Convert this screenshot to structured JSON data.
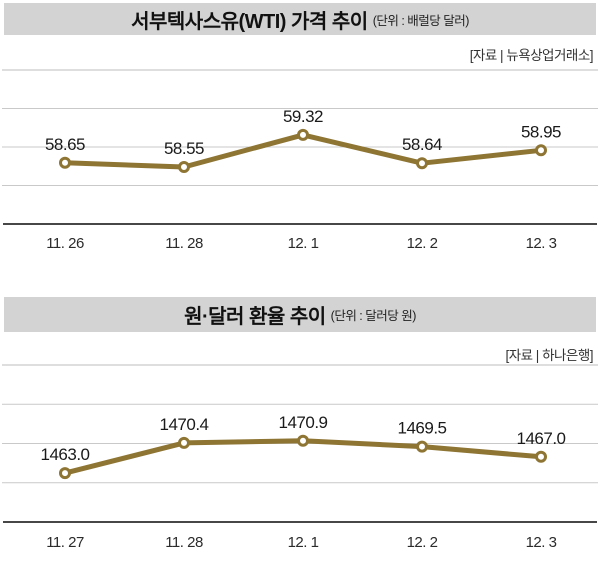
{
  "colors": {
    "title_bar_bg": "#d3d3d3",
    "line": "#8e7533",
    "marker_fill": "#ffffff",
    "gridline": "#c9c9c9",
    "divider": "#bdbdbd",
    "axis": "#474747",
    "value_text": "#1a1a1a",
    "tick_text": "#2b2b2b",
    "source_text": "#333333"
  },
  "chart_data": [
    {
      "type": "line",
      "title": "서부텍사스유(WTI) 가격 추이",
      "unit_label": "(단위 : 배럴당 달러)",
      "source": "[자료 | 뉴욕상업거래소]",
      "categories": [
        "11. 26",
        "11. 28",
        "12. 1",
        "12. 2",
        "12. 3"
      ],
      "values": [
        58.65,
        58.55,
        59.32,
        58.64,
        58.95
      ],
      "value_labels": [
        "58.65",
        "58.55",
        "59.32",
        "58.64",
        "58.95"
      ],
      "ylim": [
        57.18,
        60.88
      ],
      "grid": true,
      "legend": "none",
      "xlabel": "",
      "ylabel": ""
    },
    {
      "type": "line",
      "title": "원·달러 환율 추이",
      "unit_label": "(단위 : 달러당 원)",
      "source": "[자료 | 하나은행]",
      "categories": [
        "11. 27",
        "11. 28",
        "12. 1",
        "12. 2",
        "12. 3"
      ],
      "values": [
        1463.0,
        1470.4,
        1470.9,
        1469.5,
        1467.0
      ],
      "value_labels": [
        "1463.0",
        "1470.4",
        "1470.9",
        "1469.5",
        "1467.0"
      ],
      "ylim": [
        1451.0,
        1489.5
      ],
      "grid": true,
      "legend": "none",
      "xlabel": "",
      "ylabel": ""
    }
  ]
}
